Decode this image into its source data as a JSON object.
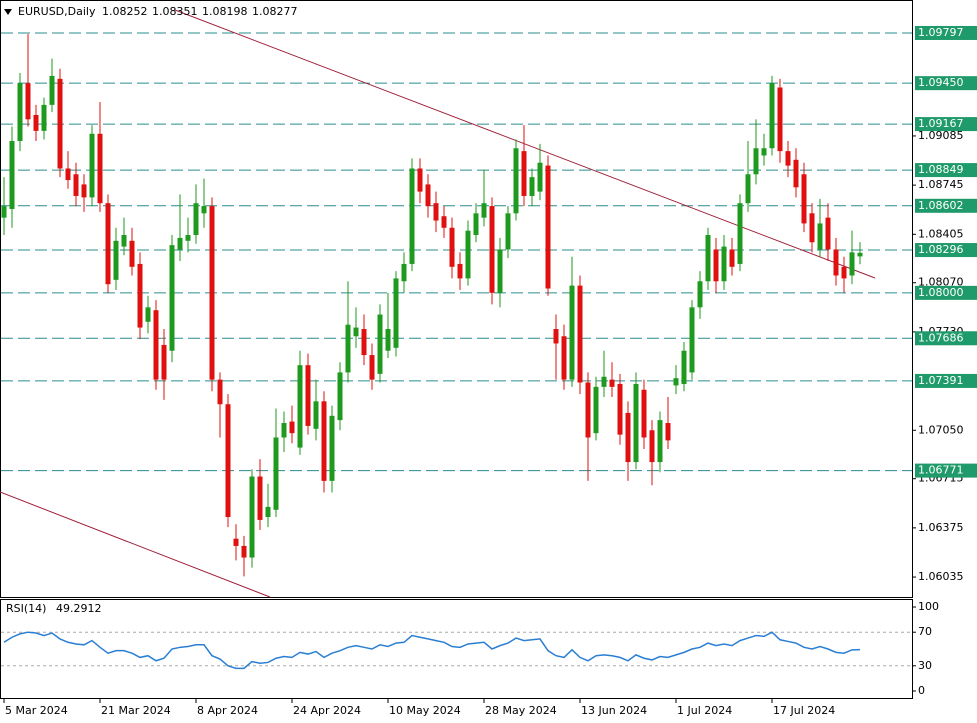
{
  "chart_data": {
    "type": "candlestick",
    "title": "EURUSD,Daily",
    "up_color": "#1e9a1e",
    "down_color": "#e01010",
    "level_color": "#2a8c8c",
    "level_label_color": "#1f9a6a",
    "ylim": [
      1.05897,
      1.10025
    ],
    "yticks": [
      {
        "value": 1.09085,
        "label": "1.09085"
      },
      {
        "value": 1.08745,
        "label": "1.08745"
      },
      {
        "value": 1.08405,
        "label": "1.08405"
      },
      {
        "value": 1.0807,
        "label": "1.08070"
      },
      {
        "value": 1.0773,
        "label": "1.07730"
      },
      {
        "value": 1.0705,
        "label": "1.07050"
      },
      {
        "value": 1.06715,
        "label": "1.06715"
      },
      {
        "value": 1.06375,
        "label": "1.06375"
      },
      {
        "value": 1.06035,
        "label": "1.06035"
      }
    ],
    "levels": [
      {
        "value": 1.09797,
        "label": "1.09797"
      },
      {
        "value": 1.0945,
        "label": "1.09450"
      },
      {
        "value": 1.09167,
        "label": "1.09167"
      },
      {
        "value": 1.08849,
        "label": "1.08849"
      },
      {
        "value": 1.08602,
        "label": "1.08602"
      },
      {
        "value": 1.08296,
        "label": "1.08296"
      },
      {
        "value": 1.08,
        "label": "1.08000"
      },
      {
        "value": 1.07686,
        "label": "1.07686"
      },
      {
        "value": 1.07391,
        "label": "1.07391"
      },
      {
        "value": 1.06771,
        "label": "1.06771"
      }
    ],
    "categories": [
      "5 Mar 2024",
      null,
      null,
      null,
      null,
      null,
      null,
      null,
      null,
      null,
      null,
      null,
      "21 Mar 2024",
      null,
      null,
      null,
      null,
      null,
      null,
      null,
      null,
      null,
      null,
      null,
      "8 Apr 2024",
      null,
      null,
      null,
      null,
      null,
      null,
      null,
      null,
      null,
      null,
      null,
      "24 Apr 2024",
      null,
      null,
      null,
      null,
      null,
      null,
      null,
      null,
      null,
      null,
      null,
      "10 May 2024",
      null,
      null,
      null,
      null,
      null,
      null,
      null,
      null,
      null,
      null,
      null,
      "28 May 2024",
      null,
      null,
      null,
      null,
      null,
      null,
      null,
      null,
      null,
      null,
      null,
      "13 Jun 2024",
      null,
      null,
      null,
      null,
      null,
      null,
      null,
      null,
      null,
      null,
      null,
      "1 Jul 2024",
      null,
      null,
      null,
      null,
      null,
      null,
      null,
      null,
      null,
      null,
      null,
      "17 Jul 2024",
      null,
      null,
      null,
      null,
      null,
      null,
      null,
      null,
      null,
      null,
      null
    ],
    "candles": [
      [
        1.0852,
        1.088,
        1.084,
        1.086
      ],
      [
        1.0858,
        1.0915,
        1.0845,
        1.0905
      ],
      [
        1.0905,
        1.0952,
        1.0898,
        1.0945
      ],
      [
        1.0945,
        1.0979,
        1.0915,
        1.092
      ],
      [
        1.0923,
        1.093,
        1.0905,
        1.0912
      ],
      [
        1.0912,
        1.0935,
        1.0906,
        1.093
      ],
      [
        1.093,
        1.0962,
        1.0925,
        1.095
      ],
      [
        1.0948,
        1.0955,
        1.088,
        1.0886
      ],
      [
        1.0886,
        1.0898,
        1.0872,
        1.0878
      ],
      [
        1.0882,
        1.089,
        1.086,
        1.0867
      ],
      [
        1.0875,
        1.0882,
        1.0856,
        1.0866
      ],
      [
        1.0866,
        1.0916,
        1.086,
        1.091
      ],
      [
        1.091,
        1.0932,
        1.0856,
        1.0862
      ],
      [
        1.0862,
        1.0868,
        1.08,
        1.0806
      ],
      [
        1.0809,
        1.0845,
        1.0802,
        1.0836
      ],
      [
        1.0832,
        1.0852,
        1.0826,
        1.084
      ],
      [
        1.0836,
        1.0845,
        1.0812,
        1.0818
      ],
      [
        1.082,
        1.0828,
        1.0768,
        1.0776
      ],
      [
        1.078,
        1.0798,
        1.0772,
        1.079
      ],
      [
        1.0788,
        1.0795,
        1.0733,
        1.074
      ],
      [
        1.0764,
        1.0775,
        1.0726,
        1.074
      ],
      [
        1.076,
        1.084,
        1.0752,
        1.0833
      ],
      [
        1.083,
        1.0868,
        1.0822,
        1.0838
      ],
      [
        1.0836,
        1.0852,
        1.0828,
        1.084
      ],
      [
        1.084,
        1.0875,
        1.0834,
        1.0862
      ],
      [
        1.0855,
        1.0879,
        1.0845,
        1.086
      ],
      [
        1.086,
        1.0866,
        1.0732,
        1.074
      ],
      [
        1.074,
        1.0745,
        1.07,
        1.0723
      ],
      [
        1.0723,
        1.073,
        1.0638,
        1.0645
      ],
      [
        1.063,
        1.064,
        1.0615,
        1.0625
      ],
      [
        1.0625,
        1.0632,
        1.0604,
        1.0617
      ],
      [
        1.0617,
        1.0678,
        1.061,
        1.0673
      ],
      [
        1.0673,
        1.0685,
        1.0636,
        1.0643
      ],
      [
        1.0645,
        1.0668,
        1.0638,
        1.0652
      ],
      [
        1.065,
        1.072,
        1.0645,
        1.07
      ],
      [
        1.07,
        1.0718,
        1.069,
        1.071
      ],
      [
        1.0711,
        1.0722,
        1.0696,
        1.0703
      ],
      [
        1.0693,
        1.076,
        1.0688,
        1.075
      ],
      [
        1.075,
        1.0758,
        1.0702,
        1.0708
      ],
      [
        1.0706,
        1.074,
        1.0698,
        1.0725
      ],
      [
        1.0725,
        1.0732,
        1.0662,
        1.067
      ],
      [
        1.067,
        1.0722,
        1.0662,
        1.0715
      ],
      [
        1.0712,
        1.0752,
        1.0705,
        1.0745
      ],
      [
        1.0745,
        1.0808,
        1.0738,
        1.0778
      ],
      [
        1.077,
        1.079,
        1.0762,
        1.0776
      ],
      [
        1.0775,
        1.0785,
        1.075,
        1.0757
      ],
      [
        1.0757,
        1.0765,
        1.0733,
        1.074
      ],
      [
        1.0744,
        1.0792,
        1.0738,
        1.0785
      ],
      [
        1.076,
        1.08,
        1.0755,
        1.0775
      ],
      [
        1.0762,
        1.0815,
        1.0756,
        1.081
      ],
      [
        1.0808,
        1.0828,
        1.08,
        1.082
      ],
      [
        1.082,
        1.0893,
        1.0815,
        1.0886
      ],
      [
        1.0886,
        1.0893,
        1.0862,
        1.087
      ],
      [
        1.0875,
        1.0882,
        1.0852,
        1.086
      ],
      [
        1.0862,
        1.087,
        1.0842,
        1.085
      ],
      [
        1.0853,
        1.086,
        1.0838,
        1.0845
      ],
      [
        1.0845,
        1.0852,
        1.081,
        1.0818
      ],
      [
        1.082,
        1.0828,
        1.0802,
        1.081
      ],
      [
        1.081,
        1.085,
        1.0805,
        1.0843
      ],
      [
        1.084,
        1.0862,
        1.0835,
        1.0855
      ],
      [
        1.0852,
        1.0885,
        1.0846,
        1.0862
      ],
      [
        1.086,
        1.0866,
        1.0792,
        1.08
      ],
      [
        1.08,
        1.0838,
        1.079,
        1.083
      ],
      [
        1.083,
        1.086,
        1.0824,
        1.0855
      ],
      [
        1.0855,
        1.0906,
        1.085,
        1.09
      ],
      [
        1.0898,
        1.0916,
        1.086,
        1.0867
      ],
      [
        1.0867,
        1.0886,
        1.086,
        1.088
      ],
      [
        1.087,
        1.0903,
        1.0864,
        1.089
      ],
      [
        1.0888,
        1.0895,
        1.0798,
        1.0803
      ],
      [
        1.0775,
        1.0785,
        1.074,
        1.0765
      ],
      [
        1.077,
        1.0778,
        1.0733,
        1.074
      ],
      [
        1.074,
        1.0825,
        1.0735,
        1.0805
      ],
      [
        1.0805,
        1.0812,
        1.073,
        1.0738
      ],
      [
        1.0738,
        1.0745,
        1.067,
        1.07
      ],
      [
        1.0703,
        1.0742,
        1.0698,
        1.0735
      ],
      [
        1.0735,
        1.076,
        1.0728,
        1.0742
      ],
      [
        1.074,
        1.0752,
        1.0728,
        1.0735
      ],
      [
        1.0737,
        1.0744,
        1.0695,
        1.0702
      ],
      [
        1.0717,
        1.0725,
        1.067,
        1.0683
      ],
      [
        1.0683,
        1.0745,
        1.0678,
        1.0737
      ],
      [
        1.0733,
        1.074,
        1.0692,
        1.07
      ],
      [
        1.0705,
        1.0712,
        1.0667,
        1.0683
      ],
      [
        1.0683,
        1.0718,
        1.0676,
        1.0712
      ],
      [
        1.071,
        1.0728,
        1.0692,
        1.0698
      ],
      [
        1.0736,
        1.075,
        1.073,
        1.0741
      ],
      [
        1.0737,
        1.0766,
        1.0732,
        1.076
      ],
      [
        1.0745,
        1.0795,
        1.074,
        1.079
      ],
      [
        1.079,
        1.0815,
        1.0782,
        1.0808
      ],
      [
        1.0808,
        1.0845,
        1.0802,
        1.084
      ],
      [
        1.083,
        1.0838,
        1.08,
        1.0808
      ],
      [
        1.0808,
        1.084,
        1.0802,
        1.0832
      ],
      [
        1.083,
        1.0838,
        1.0812,
        1.0818
      ],
      [
        1.082,
        1.0868,
        1.0815,
        1.0862
      ],
      [
        1.0862,
        1.0905,
        1.0856,
        1.0882
      ],
      [
        1.0882,
        1.092,
        1.0875,
        1.09
      ],
      [
        1.0895,
        1.091,
        1.0888,
        1.09
      ],
      [
        1.09,
        1.095,
        1.0895,
        1.0945
      ],
      [
        1.0942,
        1.0948,
        1.089,
        1.0898
      ],
      [
        1.0898,
        1.0905,
        1.088,
        1.0888
      ],
      [
        1.0892,
        1.09,
        1.0866,
        1.0873
      ],
      [
        1.0882,
        1.089,
        1.0842,
        1.0848
      ],
      [
        1.0855,
        1.0862,
        1.0828,
        1.0835
      ],
      [
        1.083,
        1.0865,
        1.0825,
        1.0848
      ],
      [
        1.0852,
        1.0862,
        1.0822,
        1.083
      ],
      [
        1.083,
        1.0838,
        1.0805,
        1.0812
      ],
      [
        1.0818,
        1.0825,
        1.08,
        1.081
      ],
      [
        1.0812,
        1.0843,
        1.0806,
        1.0828
      ],
      [
        1.08252,
        1.08351,
        1.08198,
        1.08277
      ]
    ],
    "rsi": {
      "name": "RSI(14)",
      "color": "#2a7fd4",
      "ylim": [
        0,
        100
      ],
      "yticks": [
        100,
        70,
        30,
        0
      ],
      "levels": [
        70,
        30
      ],
      "values": [
        58,
        64,
        68,
        70,
        69,
        66,
        69,
        62,
        58,
        56,
        55,
        60,
        52,
        45,
        48,
        48,
        45,
        40,
        42,
        36,
        39,
        50,
        52,
        53,
        55,
        55,
        42,
        38,
        30,
        27,
        27,
        35,
        33,
        34,
        39,
        41,
        40,
        46,
        44,
        47,
        40,
        45,
        48,
        52,
        54,
        52,
        50,
        55,
        53,
        57,
        58,
        66,
        64,
        62,
        60,
        58,
        53,
        52,
        56,
        57,
        58,
        50,
        54,
        57,
        63,
        60,
        61,
        62,
        48,
        42,
        40,
        49,
        40,
        36,
        42,
        43,
        42,
        40,
        36,
        43,
        39,
        37,
        41,
        40,
        43,
        46,
        50,
        52,
        57,
        54,
        56,
        54,
        60,
        63,
        66,
        65,
        70,
        61,
        59,
        57,
        52,
        50,
        53,
        50,
        46,
        45,
        49,
        49.2912
      ]
    }
  }
}
